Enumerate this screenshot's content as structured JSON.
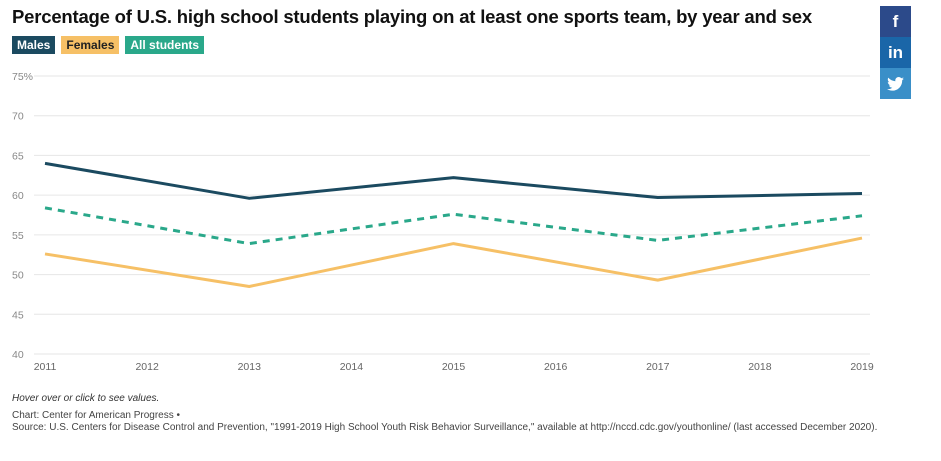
{
  "title": "Percentage of U.S. high school students playing on at least one sports team, by year and sex",
  "legend": [
    {
      "label": "Males",
      "color": "#1b4a60",
      "text_color": "#ffffff"
    },
    {
      "label": "Females",
      "color": "#f6c066",
      "text_color": "#222222"
    },
    {
      "label": "All students",
      "color": "#2aa88a",
      "text_color": "#ffffff"
    }
  ],
  "social": [
    {
      "name": "facebook",
      "glyph": "f",
      "color": "#2c4a8a"
    },
    {
      "name": "linkedin",
      "glyph": "in",
      "color": "#1a66a8"
    },
    {
      "name": "twitter",
      "glyph": "🐦",
      "color": "#3a8fc8"
    }
  ],
  "chart_data": {
    "type": "line",
    "title": "Percentage of U.S. high school students playing on at least one sports team, by year and sex",
    "xlabel": "",
    "ylabel": "",
    "x": [
      2011,
      2012,
      2013,
      2014,
      2015,
      2016,
      2017,
      2018,
      2019
    ],
    "x_tick_labels": [
      "2011",
      "2012",
      "2013",
      "2014",
      "2015",
      "2016",
      "2017",
      "2018",
      "2019"
    ],
    "ylim": [
      40,
      75
    ],
    "y_ticks": [
      40,
      45,
      50,
      55,
      60,
      65,
      70,
      75
    ],
    "y_tick_labels": [
      "40",
      "45",
      "50",
      "55",
      "60",
      "65",
      "70",
      "75%"
    ],
    "grid": true,
    "legend_position": "top-left",
    "series": [
      {
        "name": "Males",
        "color": "#1b4a60",
        "dashed": false,
        "x": [
          2011,
          2013,
          2015,
          2017,
          2019
        ],
        "values": [
          64.0,
          59.6,
          62.2,
          59.7,
          60.2
        ]
      },
      {
        "name": "All students",
        "color": "#2aa88a",
        "dashed": true,
        "x": [
          2011,
          2013,
          2015,
          2017,
          2019
        ],
        "values": [
          58.4,
          53.9,
          57.6,
          54.3,
          57.4
        ]
      },
      {
        "name": "Females",
        "color": "#f6c066",
        "dashed": false,
        "x": [
          2011,
          2013,
          2015,
          2017,
          2019
        ],
        "values": [
          52.6,
          48.5,
          53.9,
          49.3,
          54.6
        ]
      }
    ]
  },
  "footer": {
    "note": "Hover over or click to see values.",
    "credit": "Chart: Center for American Progress •",
    "source": "Source: U.S. Centers for Disease Control and Prevention, \"1991-2019 High School Youth Risk Behavior Surveillance,\" available at http://nccd.cdc.gov/youthonline/ (last accessed December 2020)."
  }
}
